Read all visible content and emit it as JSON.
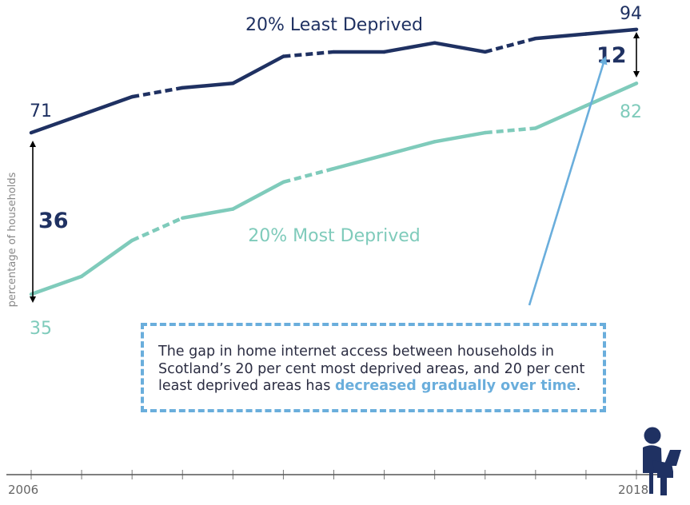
{
  "chart_data": {
    "type": "line",
    "x": [
      2006,
      2007,
      2008,
      2009,
      2010,
      2011,
      2012,
      2013,
      2014,
      2015,
      2016,
      2017,
      2018
    ],
    "series": [
      {
        "name": "20% Least Deprived",
        "values": [
          71,
          75,
          79,
          81,
          82,
          88,
          89,
          89,
          91,
          89,
          92,
          93,
          94
        ],
        "color": "#1f3162"
      },
      {
        "name": "20% Most Deprived",
        "values": [
          35,
          39,
          47,
          52,
          54,
          60,
          63,
          66,
          69,
          71,
          72,
          77,
          82
        ],
        "color": "#7fcbbb"
      }
    ],
    "xlabel": "",
    "ylabel": "percentage of households",
    "tick_labels": {
      "start": "2006",
      "end": "2018"
    },
    "start_labels": {
      "top": "71",
      "bottom": "35"
    },
    "end_labels": {
      "top": "94",
      "bottom": "82"
    },
    "gap_start": "36",
    "gap_end": "12",
    "ylim": [
      29,
      97
    ],
    "grid": false,
    "legend": "inline labels"
  },
  "callout": {
    "text_before": "The gap in home internet access between households in Scotland’s 20 per cent most deprived areas, and 20 per cent least deprived areas has ",
    "highlight": "decreased gradually over time",
    "text_after": "."
  },
  "colors": {
    "dark": "#1f3162",
    "teal": "#7fcbbb",
    "blue": "#6aaedc",
    "axis": "#555555"
  },
  "icons": [
    "person-with-laptop-icon"
  ]
}
